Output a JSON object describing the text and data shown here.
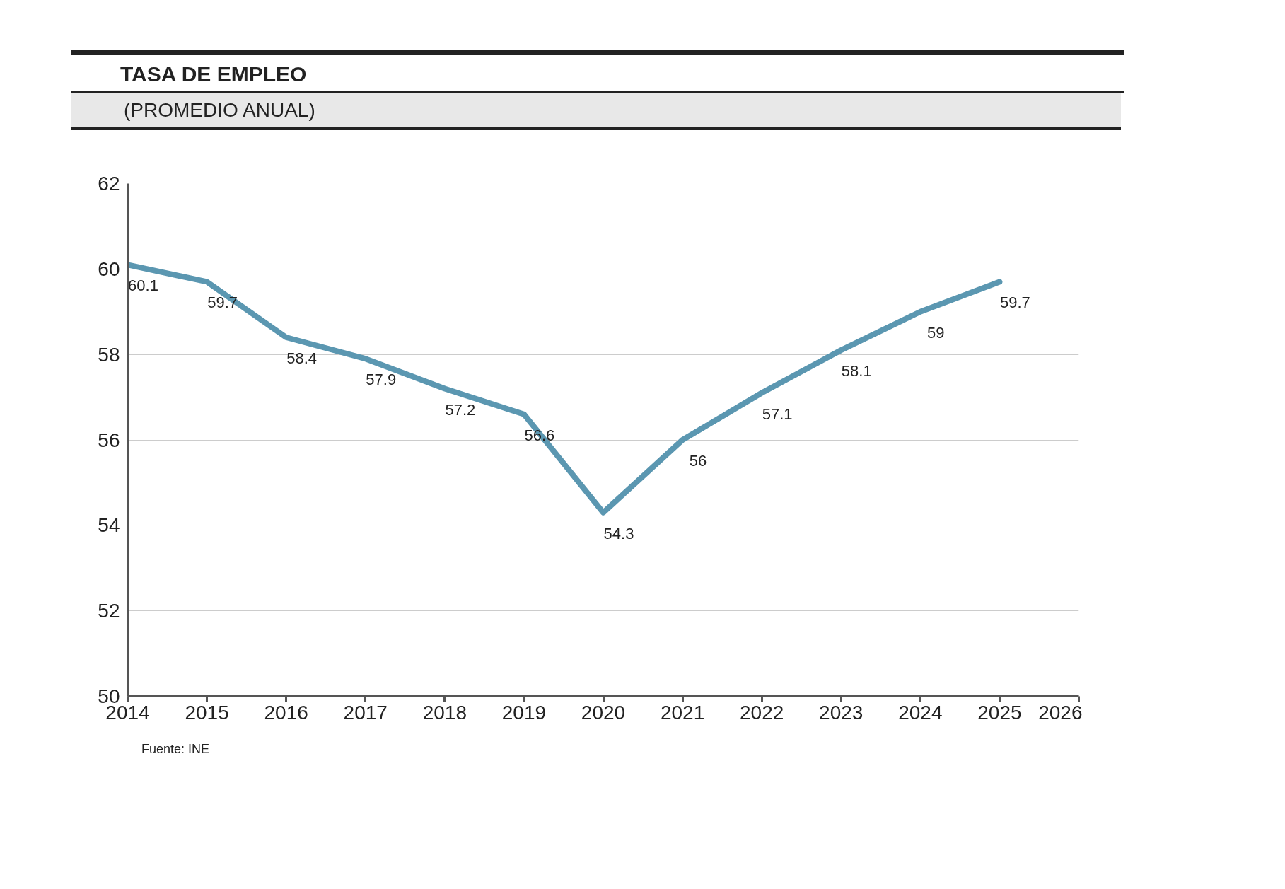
{
  "chart_data": {
    "type": "line",
    "title": "TASA DE EMPLEO",
    "subtitle": "(PROMEDIO ANUAL)",
    "x": [
      2014,
      2015,
      2016,
      2017,
      2018,
      2019,
      2020,
      2021,
      2022,
      2023,
      2024,
      2025
    ],
    "series": [
      {
        "color": "#5b97b1",
        "values": [
          60.1,
          59.7,
          58.4,
          57.9,
          57.2,
          56.6,
          54.3,
          56,
          57.1,
          58.1,
          59,
          59.7
        ]
      }
    ],
    "xlim": [
      2014,
      2026
    ],
    "xticks": [
      2014,
      2015,
      2016,
      2017,
      2018,
      2019,
      2020,
      2021,
      2022,
      2023,
      2024,
      2025,
      2026
    ],
    "ylim": [
      50,
      62
    ],
    "yticks": [
      50,
      52,
      54,
      56,
      58,
      60,
      62
    ],
    "grid": "y",
    "data_labels": true,
    "marker": "none",
    "line_style": "solid",
    "annotations": [
      "Fuente: INE"
    ]
  }
}
